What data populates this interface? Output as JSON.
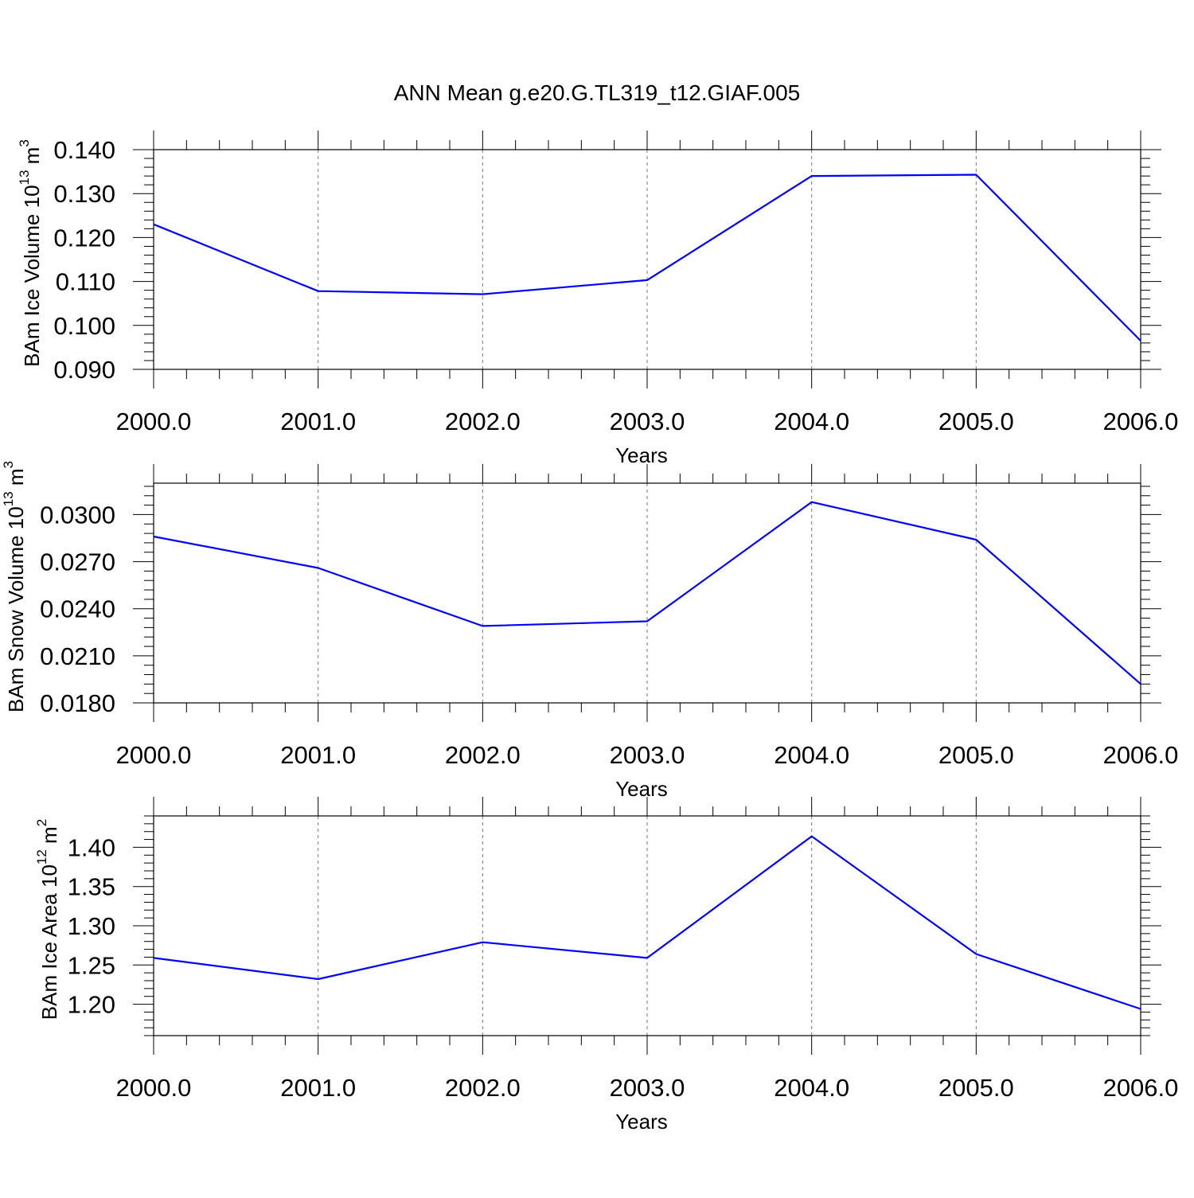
{
  "title": "ANN Mean g.e20.G.TL319_t12.GIAF.005",
  "chart_data": [
    {
      "type": "line",
      "ylabel": "BAm Ice Volume 10",
      "ylabel_exp": "13",
      "ylabel_unit": "m",
      "ylabel_unit_exp": "3",
      "xlabel": "Years",
      "x": [
        2000,
        2001,
        2002,
        2003,
        2004,
        2005,
        2006
      ],
      "x_tick_labels": [
        "2000.0",
        "2001.0",
        "2002.0",
        "2003.0",
        "2004.0",
        "2005.0",
        "2006.0"
      ],
      "y_ticks": [
        0.09,
        0.1,
        0.11,
        0.12,
        0.13,
        0.14
      ],
      "y_tick_labels": [
        "0.090",
        "0.100",
        "0.110",
        "0.120",
        "0.130",
        "0.140"
      ],
      "ylim": [
        0.09,
        0.14
      ],
      "xlim": [
        2000,
        2006
      ],
      "grid_x": true,
      "series": [
        {
          "values": [
            0.123,
            0.1078,
            0.1071,
            0.1103,
            0.134,
            0.1343,
            0.0965
          ],
          "color": "#0000ff"
        }
      ]
    },
    {
      "type": "line",
      "ylabel": "BAm Snow Volume 10",
      "ylabel_exp": "13",
      "ylabel_unit": "m",
      "ylabel_unit_exp": "3",
      "xlabel": "Years",
      "x": [
        2000,
        2001,
        2002,
        2003,
        2004,
        2005,
        2006
      ],
      "x_tick_labels": [
        "2000.0",
        "2001.0",
        "2002.0",
        "2003.0",
        "2004.0",
        "2005.0",
        "2006.0"
      ],
      "y_ticks": [
        0.018,
        0.021,
        0.024,
        0.027,
        0.03
      ],
      "y_tick_labels": [
        "0.0180",
        "0.0210",
        "0.0240",
        "0.0270",
        "0.0300"
      ],
      "ylim": [
        0.018,
        0.032
      ],
      "xlim": [
        2000,
        2006
      ],
      "grid_x": true,
      "series": [
        {
          "values": [
            0.0286,
            0.0266,
            0.0229,
            0.0232,
            0.0308,
            0.0284,
            0.0192
          ],
          "color": "#0000ff"
        }
      ]
    },
    {
      "type": "line",
      "ylabel": "BAm Ice Area 10",
      "ylabel_exp": "12",
      "ylabel_unit": "m",
      "ylabel_unit_exp": "2",
      "xlabel": "Years",
      "x": [
        2000,
        2001,
        2002,
        2003,
        2004,
        2005,
        2006
      ],
      "x_tick_labels": [
        "2000.0",
        "2001.0",
        "2002.0",
        "2003.0",
        "2004.0",
        "2005.0",
        "2006.0"
      ],
      "y_ticks": [
        1.2,
        1.25,
        1.3,
        1.35,
        1.4
      ],
      "y_tick_labels": [
        "1.20",
        "1.25",
        "1.30",
        "1.35",
        "1.40"
      ],
      "ylim": [
        1.16,
        1.44
      ],
      "xlim": [
        2000,
        2006
      ],
      "grid_x": true,
      "series": [
        {
          "values": [
            1.259,
            1.232,
            1.279,
            1.259,
            1.414,
            1.264,
            1.194
          ],
          "color": "#0000ff"
        }
      ]
    }
  ]
}
